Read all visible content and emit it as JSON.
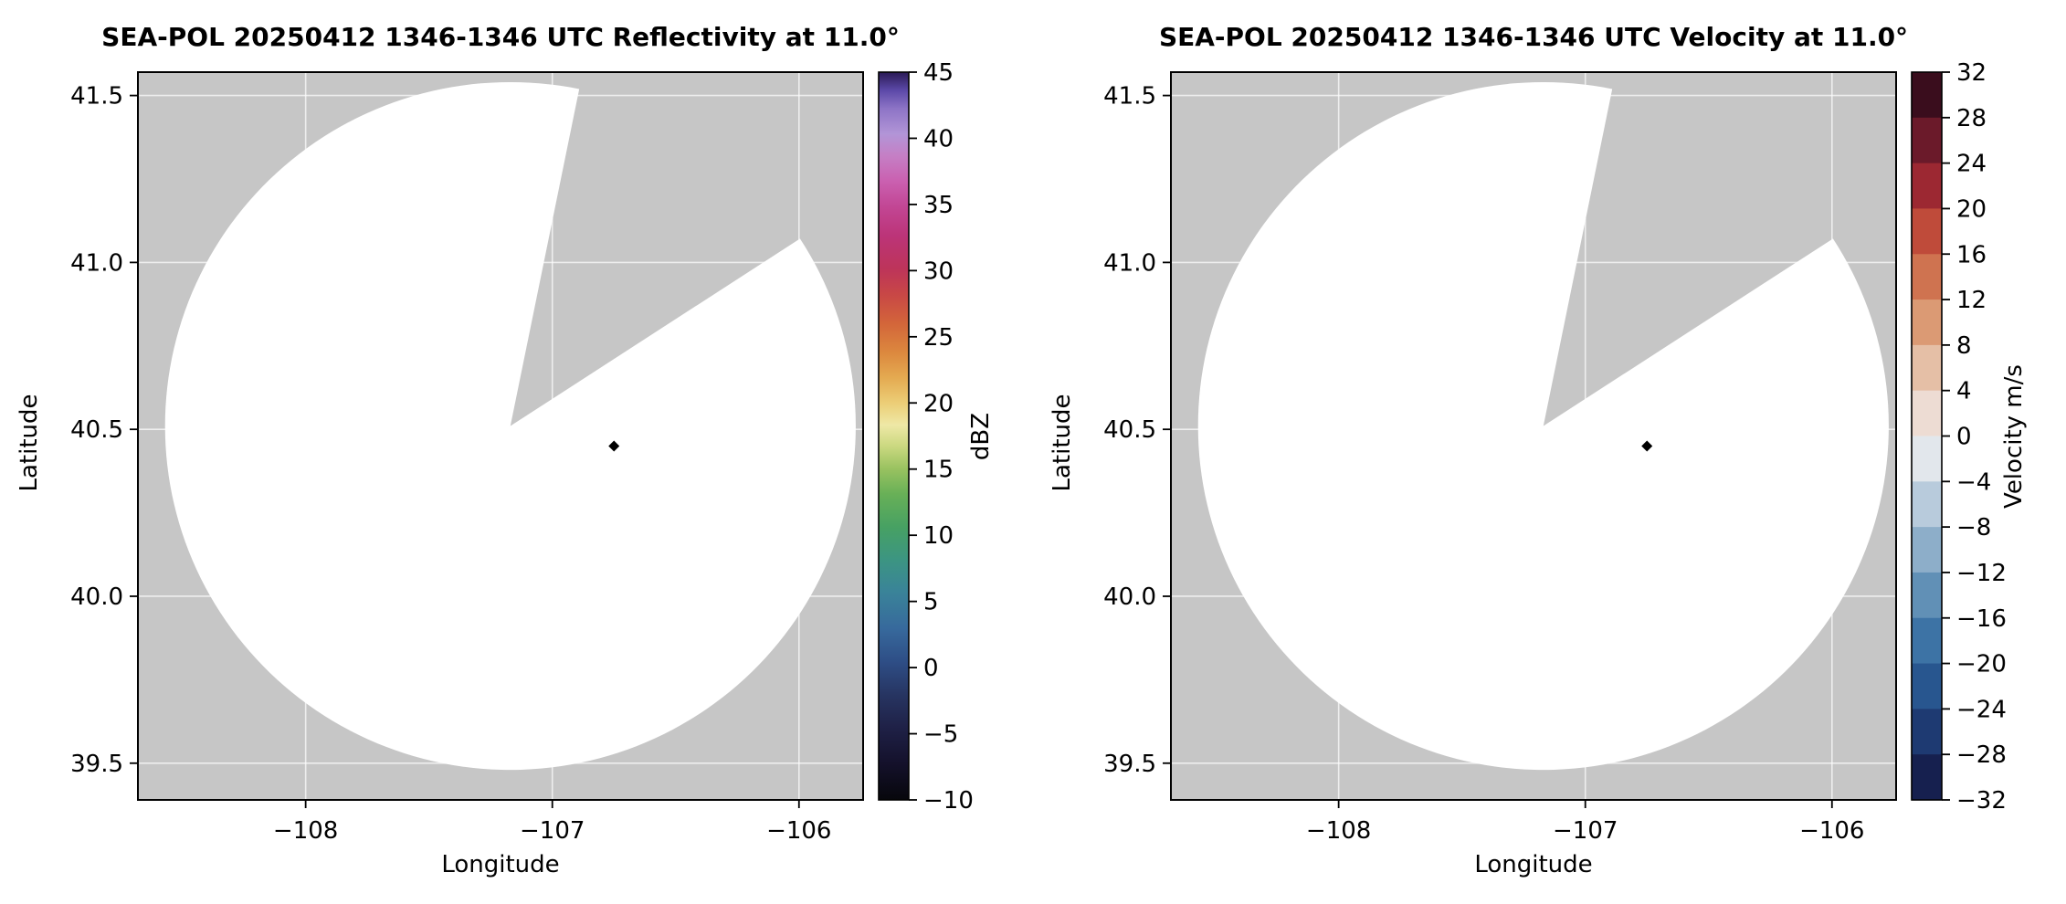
{
  "figure": {
    "background": "#ffffff",
    "map_background_color": "#c6c6c6",
    "coverage_fill_color": "#ffffff",
    "marker_color": "#000000"
  },
  "chart_data": [
    {
      "type": "radar_ppi_map",
      "title": "SEA-POL 20250412 1346-1346 UTC Reflectivity at 11.0°",
      "xlabel": "Longitude",
      "ylabel": "Latitude",
      "xlim": [
        -108.68,
        -105.74
      ],
      "ylim": [
        39.39,
        41.57
      ],
      "xticks": [
        -108,
        -107,
        -106
      ],
      "xtick_labels": [
        "−108",
        "−107",
        "−106"
      ],
      "yticks": [
        41.5,
        41.0,
        40.5,
        40.0,
        39.5
      ],
      "ytick_labels": [
        "41.5",
        "41.0",
        "40.5",
        "40.0",
        "39.5"
      ],
      "grid": true,
      "background_color": "#c6c6c6",
      "coverage": {
        "center_lon": -107.17,
        "center_lat": 40.51,
        "radius_deg_lon": 1.4,
        "radius_deg_lat": 1.03,
        "missing_sector_az_deg": [
          11.5,
          57
        ],
        "fill": "#ffffff"
      },
      "point_marker": {
        "lon": -106.75,
        "lat": 40.45,
        "color": "#000000"
      },
      "colorbar": {
        "label": "dBZ",
        "vmin": -10,
        "vmax": 45,
        "ticks": [
          45,
          40,
          35,
          30,
          25,
          20,
          15,
          10,
          5,
          0,
          -5,
          -10
        ],
        "tick_labels": [
          "45",
          "40",
          "35",
          "30",
          "25",
          "20",
          "15",
          "10",
          "5",
          "0",
          "−5",
          "−10"
        ],
        "gradient_stops": [
          [
            0.0,
            "#07070c"
          ],
          [
            0.05,
            "#14112b"
          ],
          [
            0.1,
            "#1f2147"
          ],
          [
            0.145,
            "#273562"
          ],
          [
            0.19,
            "#2e4e86"
          ],
          [
            0.235,
            "#37699c"
          ],
          [
            0.285,
            "#3a8399"
          ],
          [
            0.33,
            "#3c9582"
          ],
          [
            0.375,
            "#47a163"
          ],
          [
            0.42,
            "#68b057"
          ],
          [
            0.455,
            "#99c260"
          ],
          [
            0.487,
            "#ccd981"
          ],
          [
            0.515,
            "#eee8a6"
          ],
          [
            0.545,
            "#ecce77"
          ],
          [
            0.58,
            "#e4aa51"
          ],
          [
            0.615,
            "#dc883e"
          ],
          [
            0.655,
            "#d3653a"
          ],
          [
            0.695,
            "#c84746"
          ],
          [
            0.73,
            "#bd345a"
          ],
          [
            0.775,
            "#bc3478"
          ],
          [
            0.815,
            "#c24694"
          ],
          [
            0.85,
            "#ca60b0"
          ],
          [
            0.885,
            "#c57fc5"
          ],
          [
            0.915,
            "#b295d7"
          ],
          [
            0.95,
            "#8d74c6"
          ],
          [
            0.975,
            "#5c49a8"
          ],
          [
            1.0,
            "#2a1a55"
          ]
        ]
      }
    },
    {
      "type": "radar_ppi_map",
      "title": "SEA-POL 20250412 1346-1346 UTC Velocity at 11.0°",
      "xlabel": "Longitude",
      "ylabel": "Latitude",
      "xlim": [
        -108.68,
        -105.74
      ],
      "ylim": [
        39.39,
        41.57
      ],
      "xticks": [
        -108,
        -107,
        -106
      ],
      "xtick_labels": [
        "−108",
        "−107",
        "−106"
      ],
      "yticks": [
        41.5,
        41.0,
        40.5,
        40.0,
        39.5
      ],
      "ytick_labels": [
        "41.5",
        "41.0",
        "40.5",
        "40.0",
        "39.5"
      ],
      "grid": true,
      "background_color": "#c6c6c6",
      "coverage": {
        "center_lon": -107.17,
        "center_lat": 40.51,
        "radius_deg_lon": 1.4,
        "radius_deg_lat": 1.03,
        "missing_sector_az_deg": [
          11.5,
          57
        ],
        "fill": "#ffffff"
      },
      "point_marker": {
        "lon": -106.75,
        "lat": 40.45,
        "color": "#000000"
      },
      "colorbar": {
        "label": "Velocity m/s",
        "vmin": -32,
        "vmax": 32,
        "ticks": [
          32,
          28,
          24,
          20,
          16,
          12,
          8,
          4,
          0,
          -4,
          -8,
          -12,
          -16,
          -20,
          -24,
          -28,
          -32
        ],
        "tick_labels": [
          "32",
          "28",
          "24",
          "20",
          "16",
          "12",
          "8",
          "4",
          "0",
          "−4",
          "−8",
          "−12",
          "−16",
          "−20",
          "−24",
          "−28",
          "−32"
        ],
        "segment_levels": [
          -32,
          -28,
          -24,
          -20,
          -16,
          -12,
          -8,
          -4,
          0,
          4,
          8,
          12,
          16,
          20,
          24,
          28,
          32
        ],
        "segment_colors_top_to_bottom": [
          "#3a0d1d",
          "#6b1a2a",
          "#9c2832",
          "#bf4b3a",
          "#cf7350",
          "#db9a74",
          "#e5bfa6",
          "#eddcd3",
          "#e2e7ec",
          "#b8cbdc",
          "#8daec9",
          "#6190b6",
          "#3d73a5",
          "#28568f",
          "#1e3a72",
          "#16204f"
        ]
      }
    }
  ]
}
